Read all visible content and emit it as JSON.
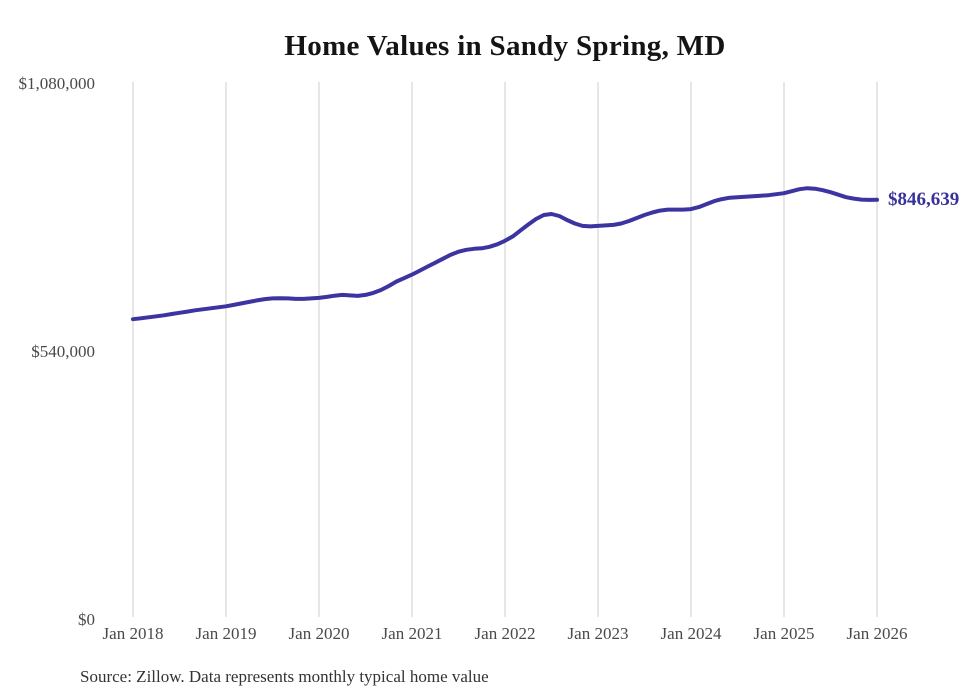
{
  "title": "Home Values in Sandy Spring, MD",
  "source_note": "Source: Zillow. Data represents monthly typical home value",
  "end_label": "$846,639",
  "colors": {
    "background": "#ffffff",
    "line": "#3b34a1",
    "grid": "#cccccc",
    "tick_text": "#494949",
    "title_text": "#141414",
    "end_label_text": "#39319b"
  },
  "chart_data": {
    "type": "line",
    "title": "Home Values in Sandy Spring, MD",
    "xlabel": "",
    "ylabel": "",
    "ylim": [
      0,
      1080000
    ],
    "grid": "vertical-only",
    "legend": "none",
    "y_ticks": [
      {
        "label": "$0",
        "value": 0
      },
      {
        "label": "$540,000",
        "value": 540000
      },
      {
        "label": "$1,080,000",
        "value": 1080000
      }
    ],
    "x_tick_labels": [
      "Jan 2018",
      "Jan 2019",
      "Jan 2020",
      "Jan 2021",
      "Jan 2022",
      "Jan 2023",
      "Jan 2024",
      "Jan 2025",
      "Jan 2026"
    ],
    "x_tick_interval_months": 12,
    "series": [
      {
        "name": "Monthly typical home value",
        "x_start": "Jan 2018",
        "x_step": "1 month",
        "end_value": 846639,
        "end_value_label": "$846,639",
        "values": [
          606000,
          608000,
          610000,
          612000,
          614000,
          616500,
          619000,
          621500,
          624000,
          626000,
          628000,
          630000,
          632000,
          635000,
          638000,
          641000,
          644000,
          646500,
          648000,
          648500,
          648000,
          647000,
          647000,
          648000,
          649000,
          651000,
          653500,
          655000,
          654000,
          653000,
          655000,
          659000,
          665000,
          673000,
          682000,
          689000,
          696000,
          704000,
          712000,
          720000,
          728000,
          736000,
          742000,
          746000,
          748000,
          749000,
          752000,
          757000,
          764000,
          773000,
          785000,
          797000,
          808000,
          816000,
          818000,
          814000,
          806000,
          799000,
          794000,
          793000,
          794000,
          795000,
          796000,
          799000,
          804000,
          810000,
          816000,
          821000,
          825000,
          827000,
          827000,
          827000,
          828000,
          832000,
          838000,
          844000,
          848000,
          851000,
          852000,
          853000,
          854000,
          855000,
          856000,
          858000,
          860000,
          864000,
          868000,
          870000,
          869000,
          866000,
          862000,
          857000,
          852000,
          849000,
          847000,
          846500,
          846639
        ]
      }
    ]
  }
}
